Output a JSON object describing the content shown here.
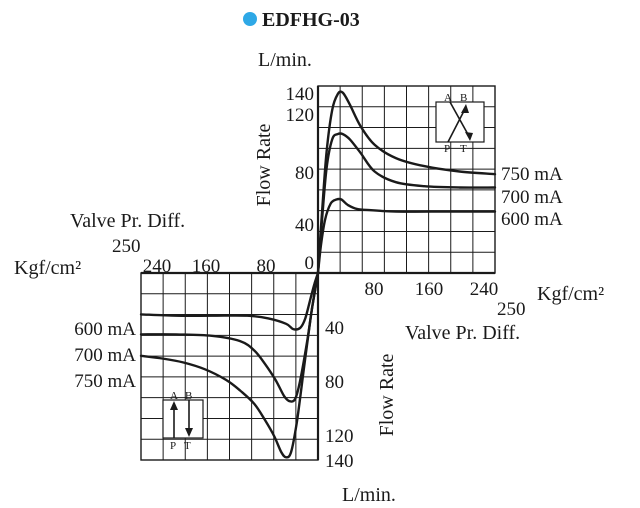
{
  "title": "EDFHG-03",
  "colors": {
    "bullet": "#2ea8e6",
    "ink": "#1a1a1a"
  },
  "labels": {
    "upper_unit": "L/min.",
    "lower_unit": "L/min.",
    "upper_ylabel": "Flow Rate",
    "lower_ylabel": "Flow Rate",
    "left_xlabel": "Valve Pr. Diff.",
    "right_xlabel": "Valve Pr. Diff.",
    "left_xunit": "Kgf/cm²",
    "right_xunit": "Kgf/cm²",
    "left_xend": "250",
    "right_xend": "250"
  },
  "ticks": {
    "upper_y": [
      "140",
      "120",
      "80",
      "40",
      "0"
    ],
    "lower_y": [
      "40",
      "80",
      "120",
      "140"
    ],
    "right_x": [
      "80",
      "160",
      "240"
    ],
    "left_x": [
      "240",
      "160",
      "80"
    ]
  },
  "symbol": {
    "upper": [
      "A",
      "B",
      "P",
      "T"
    ],
    "lower": [
      "A",
      "B",
      "P",
      "T"
    ]
  },
  "chart_data": [
    {
      "type": "line",
      "panel": "upper-right",
      "xlabel": "Valve Pr. Diff.",
      "ylabel": "Flow Rate",
      "xlim": [
        0,
        250
      ],
      "ylim": [
        0,
        140
      ],
      "series": [
        {
          "name": "750 mA",
          "x": [
            0,
            5,
            12,
            20,
            28,
            35,
            45,
            60,
            80,
            110,
            150,
            200,
            250
          ],
          "y": [
            0,
            40,
            90,
            122,
            134,
            135,
            126,
            110,
            96,
            86,
            80,
            76,
            74
          ]
        },
        {
          "name": "700 mA",
          "x": [
            0,
            5,
            12,
            20,
            28,
            35,
            45,
            60,
            80,
            110,
            150,
            200,
            250
          ],
          "y": [
            0,
            35,
            78,
            100,
            104,
            104,
            100,
            90,
            76,
            68,
            65,
            64,
            64
          ]
        },
        {
          "name": "600 mA",
          "x": [
            0,
            4,
            10,
            18,
            26,
            33,
            42,
            55,
            75,
            110,
            160,
            250
          ],
          "y": [
            0,
            20,
            40,
            52,
            55,
            55,
            51,
            48,
            47,
            46,
            46,
            46
          ]
        }
      ]
    },
    {
      "type": "line",
      "panel": "lower-left",
      "xlabel": "Valve Pr. Diff.",
      "ylabel": "Flow Rate",
      "xlim": [
        250,
        0
      ],
      "ylim": [
        140,
        0
      ],
      "series": [
        {
          "name": "600 mA",
          "x": [
            250,
            200,
            150,
            100,
            70,
            45,
            35,
            25,
            18,
            10,
            5,
            0
          ],
          "y": [
            31,
            32,
            32,
            32,
            34,
            38,
            42,
            41,
            34,
            18,
            8,
            0
          ]
        },
        {
          "name": "700 mA",
          "x": [
            250,
            200,
            150,
            110,
            90,
            75,
            60,
            48,
            40,
            32,
            25,
            15,
            8,
            0
          ],
          "y": [
            46,
            46,
            47,
            51,
            58,
            68,
            80,
            92,
            96,
            94,
            80,
            50,
            25,
            0
          ]
        },
        {
          "name": "750 mA",
          "x": [
            250,
            220,
            190,
            160,
            130,
            110,
            90,
            75,
            62,
            52,
            45,
            38,
            30,
            20,
            10,
            0
          ],
          "y": [
            62,
            64,
            67,
            72,
            80,
            88,
            98,
            110,
            122,
            134,
            138,
            134,
            112,
            72,
            32,
            0
          ]
        }
      ]
    }
  ]
}
